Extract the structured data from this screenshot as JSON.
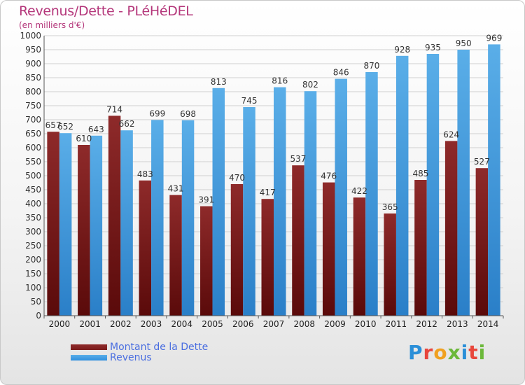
{
  "title": "Revenus/Dette - PLéHéDEL",
  "subtitle": "(en milliers d'€)",
  "logo": {
    "text": "Proxiti",
    "letters": [
      "P",
      "r",
      "o",
      "x",
      "i",
      "t",
      "i"
    ],
    "colors": [
      "#2b8fd8",
      "#e8463c",
      "#f0a020",
      "#6cb83a",
      "#2b8fd8",
      "#e8463c",
      "#6cb83a"
    ]
  },
  "colors": {
    "dette": "#7b1c1c",
    "revenus": "#2f8fde"
  },
  "chart_data": {
    "type": "bar",
    "title": "Revenus/Dette - PLéHéDEL",
    "subtitle": "(en milliers d'€)",
    "categories": [
      "2000",
      "2001",
      "2002",
      "2003",
      "2004",
      "2005",
      "2006",
      "2007",
      "2008",
      "2009",
      "2010",
      "2011",
      "2012",
      "2013",
      "2014"
    ],
    "series": [
      {
        "name": "Montant de la Dette",
        "values": [
          657,
          610,
          714,
          483,
          431,
          391,
          470,
          417,
          537,
          476,
          422,
          365,
          485,
          624,
          527
        ]
      },
      {
        "name": "Revenus",
        "values": [
          652,
          643,
          662,
          699,
          698,
          813,
          745,
          816,
          802,
          846,
          870,
          928,
          935,
          950,
          969
        ]
      }
    ],
    "ylim": [
      0,
      1000
    ],
    "yticks": [
      0,
      50,
      100,
      150,
      200,
      250,
      300,
      350,
      400,
      450,
      500,
      550,
      600,
      650,
      700,
      750,
      800,
      850,
      900,
      950,
      1000
    ],
    "grid": true,
    "legend_position": "bottom-left"
  }
}
